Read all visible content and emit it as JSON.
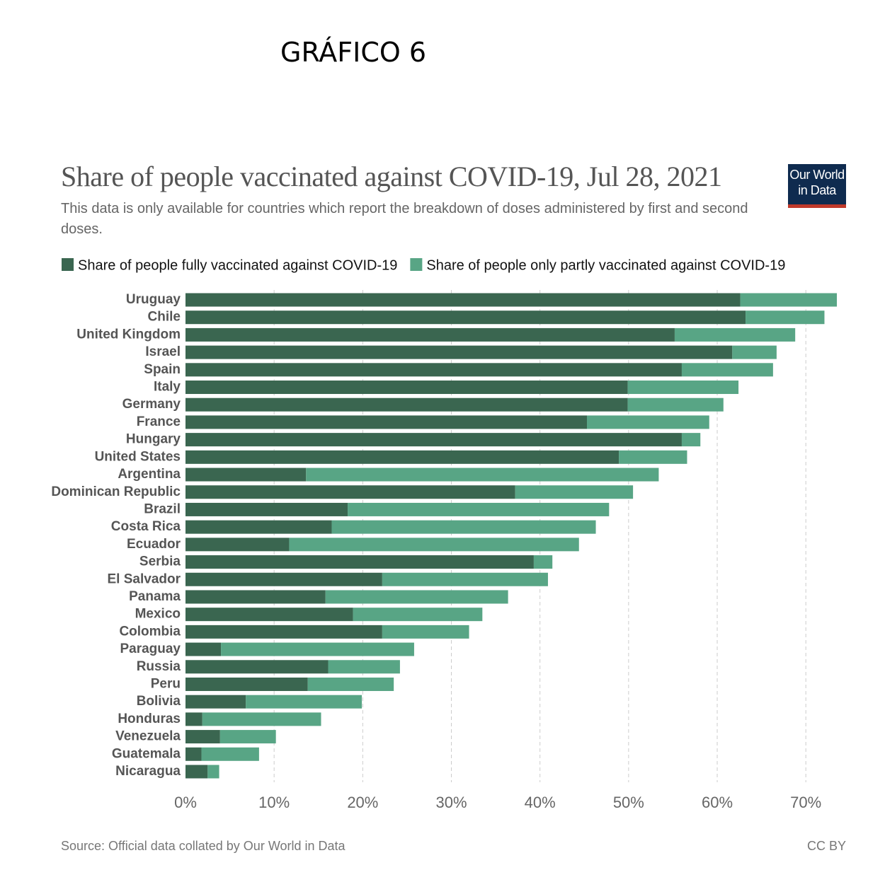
{
  "heading": "GRÁFICO 6",
  "chart_data": {
    "type": "stacked-bar-horizontal",
    "title": "Share of people vaccinated against COVID-19, Jul 28, 2021",
    "subtitle": "This data is only available for countries which report the breakdown of doses administered by first and second doses.",
    "logo": [
      "Our World",
      "in Data"
    ],
    "source": "Source: Official data collated by Our World in Data",
    "license": "CC BY",
    "categories": [
      "Uruguay",
      "Chile",
      "United Kingdom",
      "Israel",
      "Spain",
      "Italy",
      "Germany",
      "France",
      "Hungary",
      "United States",
      "Argentina",
      "Dominican Republic",
      "Brazil",
      "Costa Rica",
      "Ecuador",
      "Serbia",
      "El Salvador",
      "Panama",
      "Mexico",
      "Colombia",
      "Paraguay",
      "Russia",
      "Peru",
      "Bolivia",
      "Honduras",
      "Venezuela",
      "Guatemala",
      "Nicaragua"
    ],
    "series": [
      {
        "name": "Share of people fully vaccinated against COVID-19",
        "color": "#3a6650",
        "values": [
          62.6,
          63.2,
          55.2,
          61.7,
          56.0,
          49.9,
          49.9,
          45.3,
          56.0,
          48.9,
          13.6,
          37.2,
          18.3,
          16.5,
          11.7,
          39.3,
          22.2,
          15.8,
          18.9,
          22.2,
          4.0,
          16.1,
          13.8,
          6.8,
          1.9,
          3.9,
          1.8,
          2.5
        ]
      },
      {
        "name": "Share of people only partly vaccinated against COVID-19",
        "color": "#58a585",
        "values": [
          10.9,
          8.9,
          13.6,
          5.0,
          10.3,
          12.5,
          10.8,
          13.8,
          2.1,
          7.7,
          39.8,
          13.3,
          29.5,
          29.8,
          32.7,
          2.1,
          18.7,
          20.6,
          14.6,
          9.8,
          21.8,
          8.1,
          9.7,
          13.1,
          13.4,
          6.3,
          6.5,
          1.3
        ]
      }
    ],
    "xlim": [
      0,
      73.5
    ],
    "xticks": [
      {
        "value": 0,
        "label": "0%"
      },
      {
        "value": 10,
        "label": "10%"
      },
      {
        "value": 20,
        "label": "20%"
      },
      {
        "value": 30,
        "label": "30%"
      },
      {
        "value": 40,
        "label": "40%"
      },
      {
        "value": 50,
        "label": "50%"
      },
      {
        "value": 60,
        "label": "60%"
      },
      {
        "value": 70,
        "label": "70%"
      }
    ],
    "grid": true,
    "legend": "top"
  }
}
